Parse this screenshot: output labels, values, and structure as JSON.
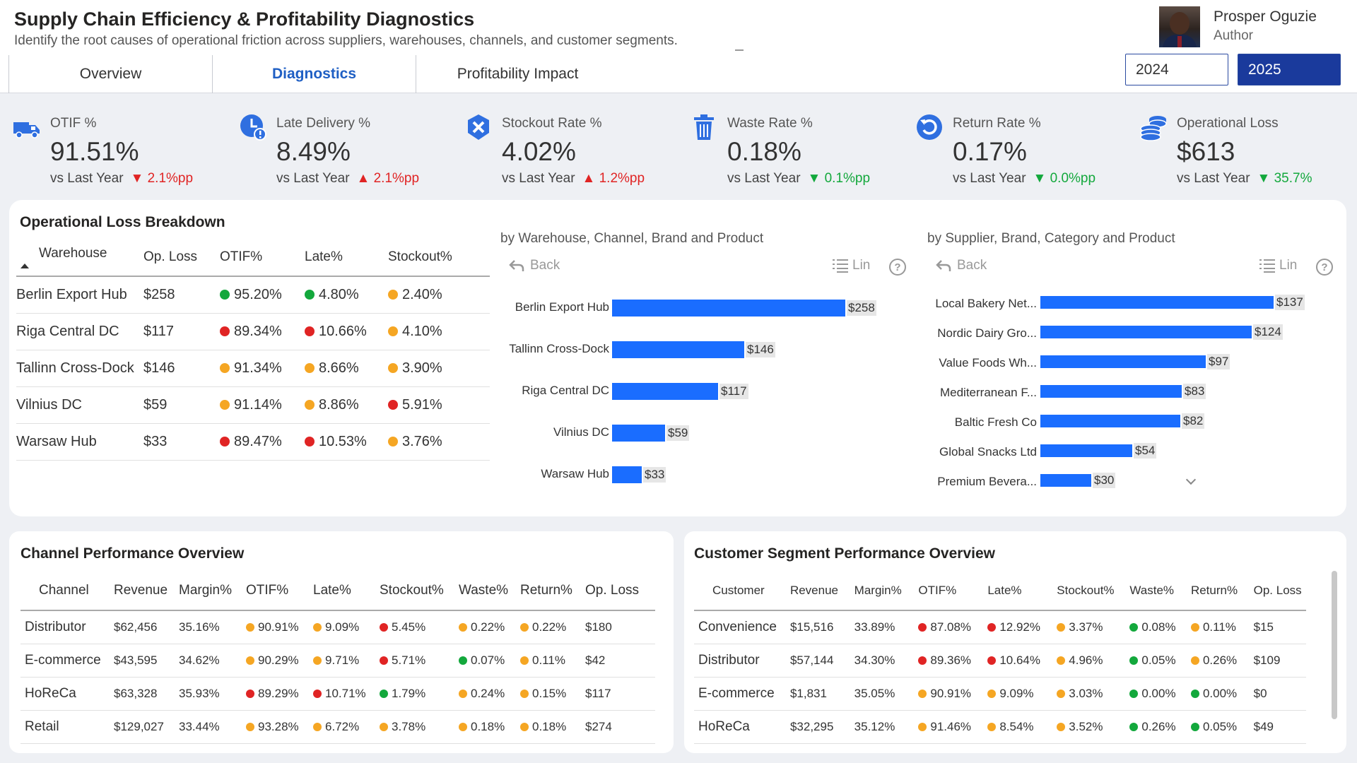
{
  "header": {
    "title": "Supply Chain Efficiency & Profitability Diagnostics",
    "subtitle": "Identify the root causes of operational friction across suppliers, warehouses, channels, and customer segments.",
    "author_name": "Prosper Oguzie",
    "author_role": "Author",
    "tabs": [
      "Overview",
      "Diagnostics",
      "Profitability Impact"
    ],
    "active_tab": "Diagnostics",
    "years": [
      "2024",
      "2025"
    ],
    "selected_year": "2025"
  },
  "kpis": [
    {
      "label": "OTIF %",
      "value": "91.51%",
      "vs": "vs Last Year",
      "change": "▼ 2.1%pp",
      "icon": "truck-icon",
      "trend": "down-red"
    },
    {
      "label": "Late Delivery %",
      "value": "8.49%",
      "vs": "vs Last Year",
      "change": "▲ 2.1%pp",
      "icon": "late-clock-icon",
      "trend": "up-red"
    },
    {
      "label": "Stockout Rate %",
      "value": "4.02%",
      "vs": "vs Last Year",
      "change": "▲ 1.2%pp",
      "icon": "stockout-x-icon",
      "trend": "up-red"
    },
    {
      "label": "Waste Rate %",
      "value": "0.18%",
      "vs": "vs Last Year",
      "change": "▼ 0.1%pp",
      "icon": "trash-icon",
      "trend": "down-green"
    },
    {
      "label": "Return Rate %",
      "value": "0.17%",
      "vs": "vs Last Year",
      "change": "▼ 0.0%pp",
      "icon": "return-arrow-icon",
      "trend": "down-green"
    },
    {
      "label": "Operational Loss",
      "value": "$613",
      "vs": "vs Last Year",
      "change": "▼ 35.7%",
      "icon": "coins-icon",
      "trend": "down-green"
    }
  ],
  "loss_breakdown": {
    "title": "Operational Loss Breakdown",
    "columns": [
      "Warehouse",
      "Op. Loss",
      "OTIF%",
      "Late%",
      "Stockout%"
    ],
    "rows": [
      {
        "warehouse": "Berlin Export Hub",
        "loss": "$258",
        "otif": "95.20%",
        "otif_s": "g",
        "late": "4.80%",
        "late_s": "g",
        "stockout": "2.40%",
        "stockout_s": "o"
      },
      {
        "warehouse": "Riga Central DC",
        "loss": "$117",
        "otif": "89.34%",
        "otif_s": "r",
        "late": "10.66%",
        "late_s": "r",
        "stockout": "4.10%",
        "stockout_s": "o"
      },
      {
        "warehouse": "Tallinn Cross-Dock",
        "loss": "$146",
        "otif": "91.34%",
        "otif_s": "o",
        "late": "8.66%",
        "late_s": "o",
        "stockout": "3.90%",
        "stockout_s": "o"
      },
      {
        "warehouse": "Vilnius DC",
        "loss": "$59",
        "otif": "91.14%",
        "otif_s": "o",
        "late": "8.86%",
        "late_s": "o",
        "stockout": "5.91%",
        "stockout_s": "r"
      },
      {
        "warehouse": "Warsaw Hub",
        "loss": "$33",
        "otif": "89.47%",
        "otif_s": "r",
        "late": "10.53%",
        "late_s": "r",
        "stockout": "3.76%",
        "stockout_s": "o"
      }
    ]
  },
  "controls": {
    "back": "Back",
    "lin": "Lin",
    "help": "?"
  },
  "chart_data": [
    {
      "type": "bar",
      "orientation": "horizontal",
      "title": "by Warehouse, Channel, Brand and Product",
      "categories": [
        "Berlin Export Hub",
        "Tallinn Cross-Dock",
        "Riga Central DC",
        "Vilnius DC",
        "Warsaw Hub"
      ],
      "values": [
        258,
        146,
        117,
        59,
        33
      ],
      "labels": [
        "$258",
        "$146",
        "$117",
        "$59",
        "$33"
      ],
      "color": "#1a6dff"
    },
    {
      "type": "bar",
      "orientation": "horizontal",
      "title": "by Supplier, Brand, Category and Product",
      "categories": [
        "Local Bakery Net...",
        "Nordic Dairy Gro...",
        "Value Foods Wh...",
        "Mediterranean F...",
        "Baltic Fresh Co",
        "Global Snacks Ltd",
        "Premium Bevera..."
      ],
      "values": [
        137,
        124,
        97,
        83,
        82,
        54,
        30
      ],
      "labels": [
        "$137",
        "$124",
        "$97",
        "$83",
        "$82",
        "$54",
        "$30"
      ],
      "color": "#1a6dff"
    }
  ],
  "channel": {
    "title": "Channel Performance Overview",
    "columns": [
      "Channel",
      "Revenue",
      "Margin%",
      "OTIF%",
      "Late%",
      "Stockout%",
      "Waste%",
      "Return%",
      "Op. Loss"
    ],
    "rows": [
      {
        "name": "Distributor",
        "revenue": "$62,456",
        "margin": "35.16%",
        "otif": "90.91%",
        "otif_s": "o",
        "late": "9.09%",
        "late_s": "o",
        "stockout": "5.45%",
        "stockout_s": "r",
        "waste": "0.22%",
        "waste_s": "o",
        "ret": "0.22%",
        "ret_s": "o",
        "loss": "$180"
      },
      {
        "name": "E-commerce",
        "revenue": "$43,595",
        "margin": "34.62%",
        "otif": "90.29%",
        "otif_s": "o",
        "late": "9.71%",
        "late_s": "o",
        "stockout": "5.71%",
        "stockout_s": "r",
        "waste": "0.07%",
        "waste_s": "g",
        "ret": "0.11%",
        "ret_s": "o",
        "loss": "$42"
      },
      {
        "name": "HoReCa",
        "revenue": "$63,328",
        "margin": "35.93%",
        "otif": "89.29%",
        "otif_s": "r",
        "late": "10.71%",
        "late_s": "r",
        "stockout": "1.79%",
        "stockout_s": "g",
        "waste": "0.24%",
        "waste_s": "o",
        "ret": "0.15%",
        "ret_s": "o",
        "loss": "$117"
      },
      {
        "name": "Retail",
        "revenue": "$129,027",
        "margin": "33.44%",
        "otif": "93.28%",
        "otif_s": "o",
        "late": "6.72%",
        "late_s": "o",
        "stockout": "3.78%",
        "stockout_s": "o",
        "waste": "0.18%",
        "waste_s": "o",
        "ret": "0.18%",
        "ret_s": "o",
        "loss": "$274"
      }
    ]
  },
  "segment": {
    "title": "Customer Segment Performance Overview",
    "columns": [
      "Customer",
      "Revenue",
      "Margin%",
      "OTIF%",
      "Late%",
      "Stockout%",
      "Waste%",
      "Return%",
      "Op. Loss"
    ],
    "rows": [
      {
        "name": "Convenience",
        "revenue": "$15,516",
        "margin": "33.89%",
        "otif": "87.08%",
        "otif_s": "r",
        "late": "12.92%",
        "late_s": "r",
        "stockout": "3.37%",
        "stockout_s": "o",
        "waste": "0.08%",
        "waste_s": "g",
        "ret": "0.11%",
        "ret_s": "o",
        "loss": "$15"
      },
      {
        "name": "Distributor",
        "revenue": "$57,144",
        "margin": "34.30%",
        "otif": "89.36%",
        "otif_s": "r",
        "late": "10.64%",
        "late_s": "r",
        "stockout": "4.96%",
        "stockout_s": "o",
        "waste": "0.05%",
        "waste_s": "g",
        "ret": "0.26%",
        "ret_s": "o",
        "loss": "$109"
      },
      {
        "name": "E-commerce",
        "revenue": "$1,831",
        "margin": "35.05%",
        "otif": "90.91%",
        "otif_s": "o",
        "late": "9.09%",
        "late_s": "o",
        "stockout": "3.03%",
        "stockout_s": "o",
        "waste": "0.00%",
        "waste_s": "g",
        "ret": "0.00%",
        "ret_s": "g",
        "loss": "$0"
      },
      {
        "name": "HoReCa",
        "revenue": "$32,295",
        "margin": "35.12%",
        "otif": "91.46%",
        "otif_s": "o",
        "late": "8.54%",
        "late_s": "o",
        "stockout": "3.52%",
        "stockout_s": "o",
        "waste": "0.26%",
        "waste_s": "g",
        "ret": "0.05%",
        "ret_s": "g",
        "loss": "$49"
      }
    ]
  }
}
